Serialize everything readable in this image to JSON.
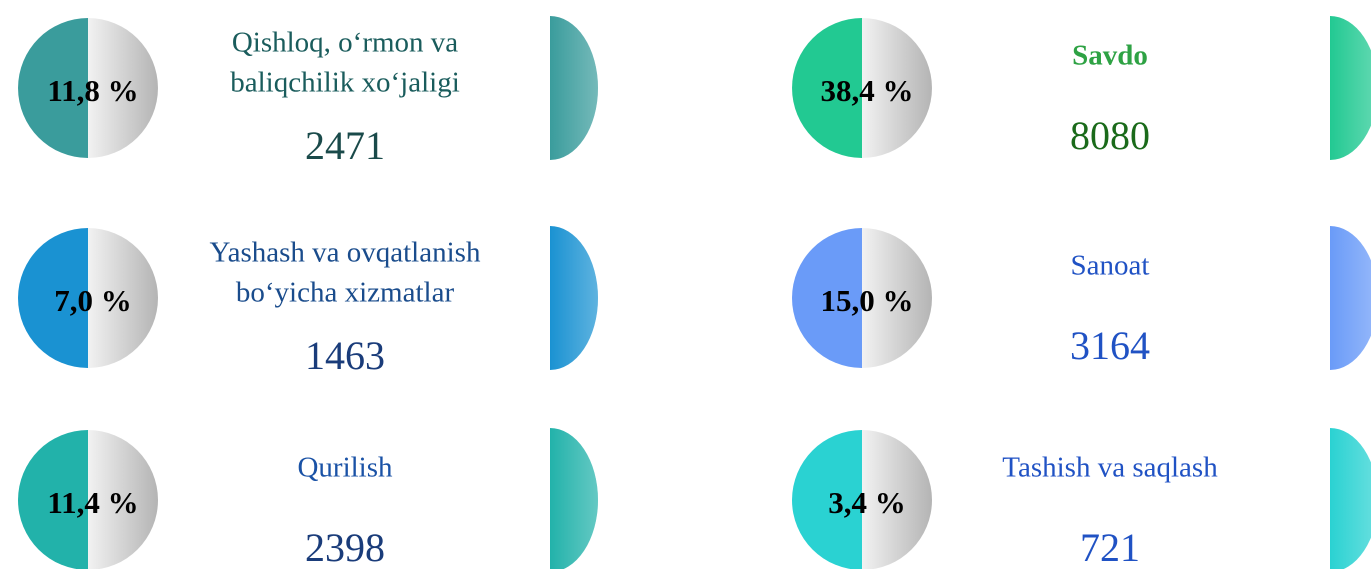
{
  "items": [
    {
      "percent": "11,8 %",
      "label": [
        "Qishloq, o‘rmon va",
        "baliqchilik xo‘jaligi"
      ],
      "value": "2471",
      "color": "#3a9c9c"
    },
    {
      "percent": "7,0 %",
      "label": [
        "Yashash va ovqatlanish",
        "bo‘yicha xizmatlar"
      ],
      "value": "1463",
      "color": "#1a92d2"
    },
    {
      "percent": "11,4 %",
      "label": [
        "Qurilish"
      ],
      "value": "2398",
      "color": "#22b2aa"
    },
    {
      "percent": "38,4 %",
      "label": [
        "Savdo"
      ],
      "value": "8080",
      "color": "#22c992"
    },
    {
      "percent": "15,0 %",
      "label": [
        "Sanoat"
      ],
      "value": "3164",
      "color": "#6a9bf8"
    },
    {
      "percent": "3,4 %",
      "label": [
        "Tashish va saqlash"
      ],
      "value": "721",
      "color": "#2ad2d2"
    }
  ]
}
